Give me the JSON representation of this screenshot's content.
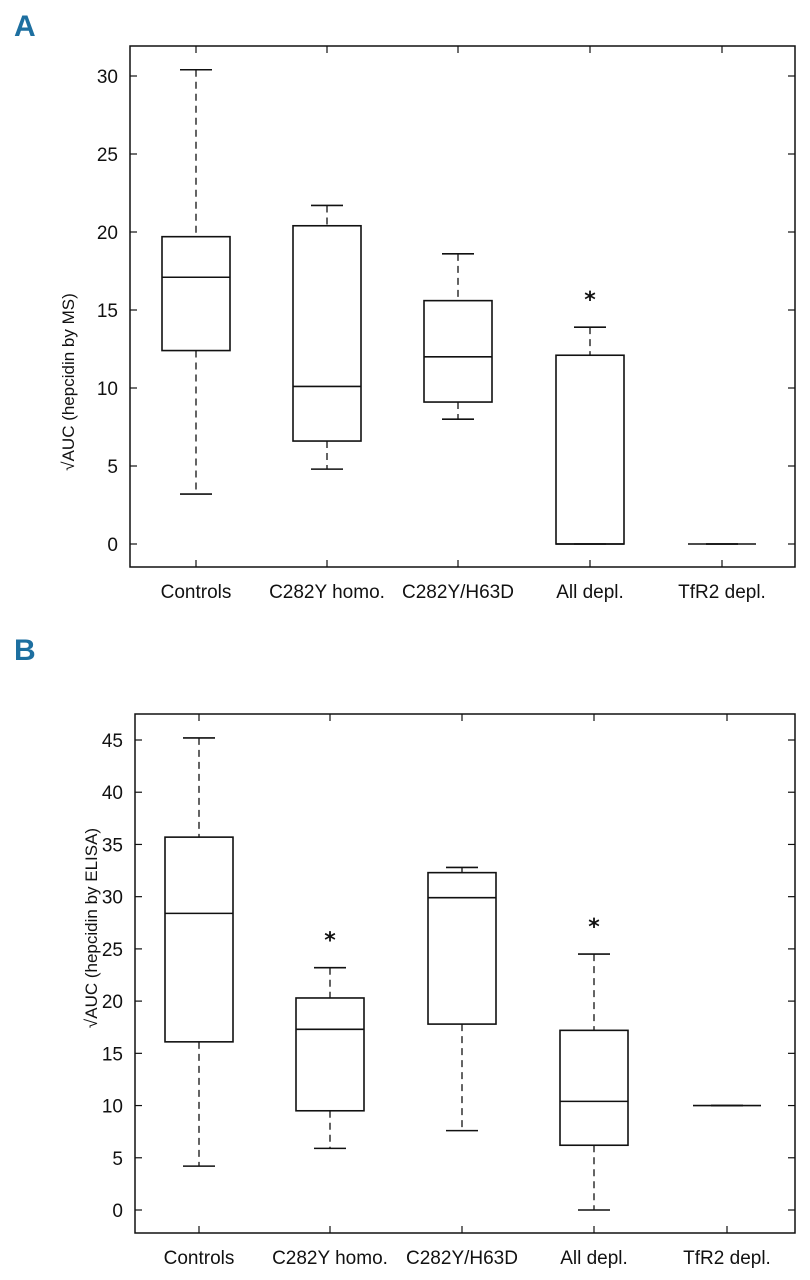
{
  "panels": [
    {
      "letter": "A"
    },
    {
      "letter": "B"
    }
  ],
  "chart_data": [
    {
      "type": "box",
      "panel": "A",
      "ylabel": "√AUC (hepcidin by MS)",
      "yticks": [
        0,
        5,
        10,
        15,
        20,
        25,
        30
      ],
      "categories": [
        "Controls",
        "C282Y homo.",
        "C282Y/H63D",
        "All depl.",
        "TfR2 depl."
      ],
      "boxes": [
        {
          "category": "Controls",
          "whislo": 3.2,
          "q1": 12.4,
          "med": 17.1,
          "q3": 19.7,
          "whishi": 30.4,
          "flag": ""
        },
        {
          "category": "C282Y homo.",
          "whislo": 4.8,
          "q1": 6.6,
          "med": 10.1,
          "q3": 20.4,
          "whishi": 21.7,
          "flag": ""
        },
        {
          "category": "C282Y/H63D",
          "whislo": 8.0,
          "q1": 9.1,
          "med": 12.0,
          "q3": 15.6,
          "whishi": 18.6,
          "flag": ""
        },
        {
          "category": "All depl.",
          "whislo": 0.0,
          "q1": 0.0,
          "med": 0.0,
          "q3": 12.1,
          "whishi": 13.9,
          "flag": "*"
        },
        {
          "category": "TfR2 depl.",
          "whislo": 0.0,
          "q1": 0.0,
          "med": 0.0,
          "q3": 0.0,
          "whishi": 0.0,
          "flag": ""
        }
      ]
    },
    {
      "type": "box",
      "panel": "B",
      "ylabel": "√AUC (hepcidin by ELISA)",
      "yticks": [
        0,
        5,
        10,
        15,
        20,
        25,
        30,
        35,
        40,
        45
      ],
      "categories": [
        "Controls",
        "C282Y homo.",
        "C282Y/H63D",
        "All depl.",
        "TfR2 depl."
      ],
      "boxes": [
        {
          "category": "Controls",
          "whislo": 4.2,
          "q1": 16.1,
          "med": 28.4,
          "q3": 35.7,
          "whishi": 45.2,
          "flag": ""
        },
        {
          "category": "C282Y homo.",
          "whislo": 5.9,
          "q1": 9.5,
          "med": 17.3,
          "q3": 20.3,
          "whishi": 23.2,
          "flag": "*"
        },
        {
          "category": "C282Y/H63D",
          "whislo": 7.6,
          "q1": 17.8,
          "med": 29.9,
          "q3": 32.3,
          "whishi": 32.8,
          "flag": ""
        },
        {
          "category": "All depl.",
          "whislo": 0.0,
          "q1": 6.2,
          "med": 10.4,
          "q3": 17.2,
          "whishi": 24.5,
          "flag": "*"
        },
        {
          "category": "TfR2 depl.",
          "whislo": 10.0,
          "q1": 10.0,
          "med": 10.0,
          "q3": 10.0,
          "whishi": 10.0,
          "flag": ""
        }
      ]
    }
  ]
}
